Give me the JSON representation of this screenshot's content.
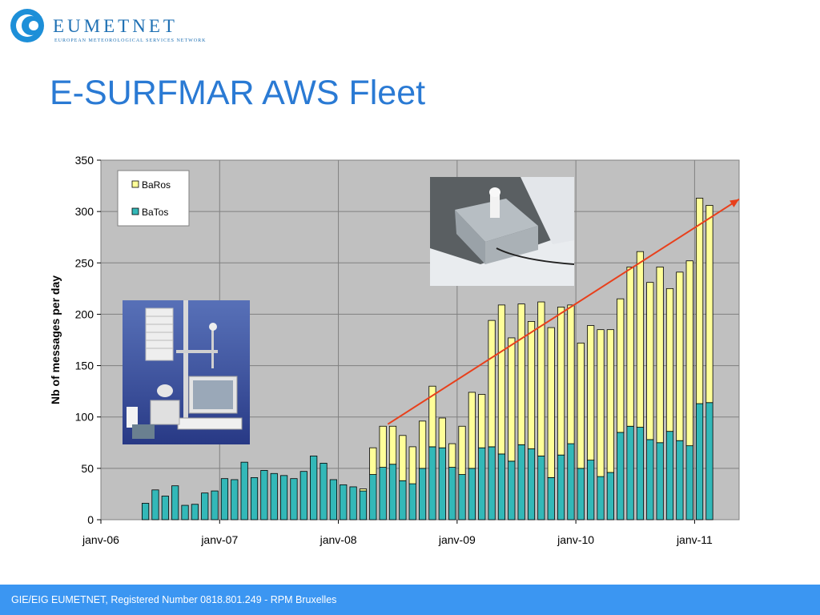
{
  "header": {
    "logo_name": "EUMETNET",
    "logo_subtitle": "EUROPEAN METEOROLOGICAL SERVICES NETWORK",
    "title": "E-SURFMAR AWS Fleet"
  },
  "footer": {
    "text": "GIE/EIG EUMETNET, Registered Number 0818.801.249 - RPM Bruxelles"
  },
  "colors": {
    "title": "#2a7ad4",
    "footer_bg": "#3b96f2",
    "plot_bg": "#c0c0c0",
    "batos": "#33b8b8",
    "baros": "#ffff99",
    "trend": "#e8401c"
  },
  "chart_data": {
    "type": "bar",
    "stacked": true,
    "title": "",
    "xlabel": "",
    "ylabel": "Nb of messages per day",
    "ylim": [
      0,
      350
    ],
    "yticks": [
      0,
      50,
      100,
      150,
      200,
      250,
      300,
      350
    ],
    "x_tick_labels": [
      "janv-06",
      "janv-07",
      "janv-08",
      "janv-09",
      "janv-10",
      "janv-11"
    ],
    "x_tick_months": [
      0,
      12,
      24,
      36,
      48,
      60
    ],
    "months": [
      4,
      5,
      6,
      7,
      8,
      9,
      10,
      11,
      12,
      13,
      14,
      15,
      16,
      17,
      18,
      19,
      20,
      21,
      22,
      23,
      24,
      25,
      26,
      27,
      28,
      29,
      30,
      31,
      32,
      33,
      34,
      35,
      36,
      37,
      38,
      39,
      40,
      41,
      42,
      43,
      44,
      45,
      46,
      47,
      48,
      49,
      50,
      51,
      52,
      53,
      54,
      55,
      56,
      57,
      58,
      59,
      60,
      61
    ],
    "legend_position": "top-left",
    "grid": true,
    "series": [
      {
        "name": "BaTos",
        "values": [
          16,
          29,
          23,
          33,
          14,
          15,
          26,
          28,
          40,
          39,
          56,
          41,
          48,
          45,
          43,
          40,
          47,
          62,
          55,
          39,
          34,
          32,
          28,
          44,
          51,
          54,
          38,
          35,
          50,
          71,
          70,
          51,
          44,
          50,
          70,
          71,
          64,
          57,
          73,
          69,
          62,
          41,
          63,
          74,
          50,
          58,
          42,
          46,
          85,
          91,
          90,
          78,
          75,
          86,
          77,
          72,
          113,
          114
        ]
      },
      {
        "name": "BaRos",
        "values": [
          0,
          0,
          0,
          0,
          0,
          0,
          0,
          0,
          0,
          0,
          0,
          0,
          0,
          0,
          0,
          0,
          0,
          0,
          0,
          0,
          0,
          0,
          2,
          26,
          40,
          37,
          44,
          36,
          46,
          59,
          29,
          23,
          47,
          74,
          52,
          123,
          145,
          120,
          137,
          124,
          150,
          146,
          144,
          135,
          122,
          131,
          143,
          139,
          130,
          155,
          171,
          153,
          171,
          139,
          164,
          180,
          200,
          192
        ]
      }
    ],
    "trend_line": {
      "label": "",
      "from": {
        "month": 29,
        "value": 93
      },
      "to": {
        "month": 64.5,
        "value": 312
      }
    }
  }
}
